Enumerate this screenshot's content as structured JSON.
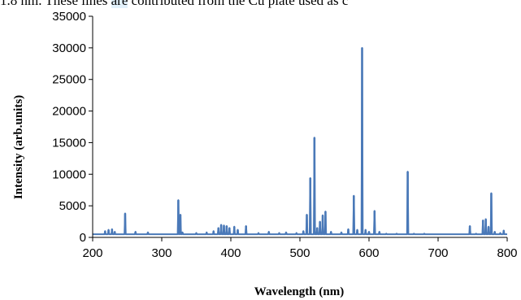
{
  "caption": {
    "prefix": "1.8 nm. These lines ",
    "highlight": "are",
    "suffix": " contributed from the Cu plate used as c"
  },
  "chart_data": {
    "type": "line",
    "title": "",
    "xlabel": "Wavelength (nm)",
    "ylabel": "Intensity (arb.units)",
    "xlim": [
      200,
      800
    ],
    "ylim": [
      0,
      35000
    ],
    "x_ticks": [
      200,
      300,
      400,
      500,
      600,
      700,
      800
    ],
    "y_ticks": [
      0,
      5000,
      10000,
      15000,
      20000,
      25000,
      30000,
      35000
    ],
    "grid": false,
    "legend": "none",
    "series": [
      {
        "color": "#4a79b8",
        "baseline": 500,
        "peaks": [
          {
            "x": 208,
            "y": 500
          },
          {
            "x": 218,
            "y": 1000
          },
          {
            "x": 223,
            "y": 1200
          },
          {
            "x": 228,
            "y": 1300
          },
          {
            "x": 232,
            "y": 900
          },
          {
            "x": 247,
            "y": 3800
          },
          {
            "x": 262,
            "y": 900
          },
          {
            "x": 280,
            "y": 800
          },
          {
            "x": 296,
            "y": 500
          },
          {
            "x": 310,
            "y": 500
          },
          {
            "x": 324,
            "y": 5900
          },
          {
            "x": 327,
            "y": 3600
          },
          {
            "x": 330,
            "y": 800
          },
          {
            "x": 350,
            "y": 700
          },
          {
            "x": 365,
            "y": 800
          },
          {
            "x": 375,
            "y": 1000
          },
          {
            "x": 382,
            "y": 1500
          },
          {
            "x": 386,
            "y": 2000
          },
          {
            "x": 390,
            "y": 1900
          },
          {
            "x": 394,
            "y": 1800
          },
          {
            "x": 398,
            "y": 1500
          },
          {
            "x": 405,
            "y": 1700
          },
          {
            "x": 410,
            "y": 1200
          },
          {
            "x": 422,
            "y": 1800
          },
          {
            "x": 440,
            "y": 700
          },
          {
            "x": 455,
            "y": 900
          },
          {
            "x": 470,
            "y": 700
          },
          {
            "x": 480,
            "y": 800
          },
          {
            "x": 495,
            "y": 700
          },
          {
            "x": 505,
            "y": 1000
          },
          {
            "x": 510,
            "y": 3600
          },
          {
            "x": 515,
            "y": 9400
          },
          {
            "x": 521,
            "y": 15800
          },
          {
            "x": 525,
            "y": 1500
          },
          {
            "x": 529,
            "y": 2500
          },
          {
            "x": 533,
            "y": 3500
          },
          {
            "x": 537,
            "y": 4100
          },
          {
            "x": 545,
            "y": 900
          },
          {
            "x": 560,
            "y": 800
          },
          {
            "x": 570,
            "y": 1300
          },
          {
            "x": 578,
            "y": 6600
          },
          {
            "x": 583,
            "y": 1200
          },
          {
            "x": 590,
            "y": 30000
          },
          {
            "x": 595,
            "y": 1200
          },
          {
            "x": 600,
            "y": 900
          },
          {
            "x": 608,
            "y": 4200
          },
          {
            "x": 615,
            "y": 900
          },
          {
            "x": 625,
            "y": 600
          },
          {
            "x": 640,
            "y": 600
          },
          {
            "x": 656,
            "y": 10400
          },
          {
            "x": 665,
            "y": 600
          },
          {
            "x": 680,
            "y": 600
          },
          {
            "x": 700,
            "y": 500
          },
          {
            "x": 720,
            "y": 500
          },
          {
            "x": 730,
            "y": 500
          },
          {
            "x": 746,
            "y": 1800
          },
          {
            "x": 755,
            "y": 600
          },
          {
            "x": 765,
            "y": 2700
          },
          {
            "x": 769,
            "y": 2900
          },
          {
            "x": 773,
            "y": 1700
          },
          {
            "x": 777,
            "y": 7000
          },
          {
            "x": 782,
            "y": 900
          },
          {
            "x": 790,
            "y": 700
          },
          {
            "x": 795,
            "y": 1100
          }
        ]
      }
    ]
  }
}
